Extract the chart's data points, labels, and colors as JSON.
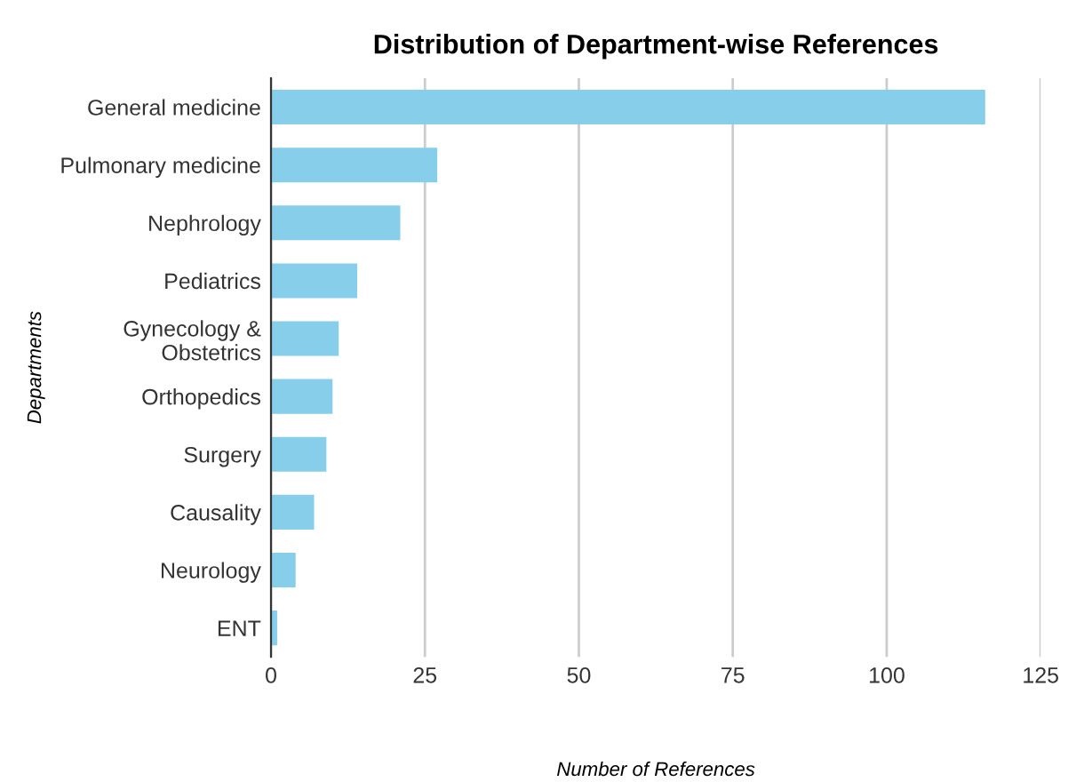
{
  "chart_data": {
    "type": "bar",
    "orientation": "horizontal",
    "title": "Distribution of Department-wise References",
    "xlabel": "Number of References",
    "ylabel": "Departments",
    "categories": [
      "General medicine",
      "Pulmonary medicine",
      "Nephrology",
      "Pediatrics",
      "Gynecology &\nObstetrics",
      "Orthopedics",
      "Surgery",
      "Causality",
      "Neurology",
      "ENT"
    ],
    "values": [
      116,
      27,
      21,
      14,
      11,
      10,
      9,
      7,
      4,
      1
    ],
    "color": "#87ceeb",
    "xlim": [
      0,
      125
    ],
    "xticks": [
      0,
      25,
      50,
      75,
      100,
      125
    ],
    "grid": "x",
    "legend": false
  }
}
